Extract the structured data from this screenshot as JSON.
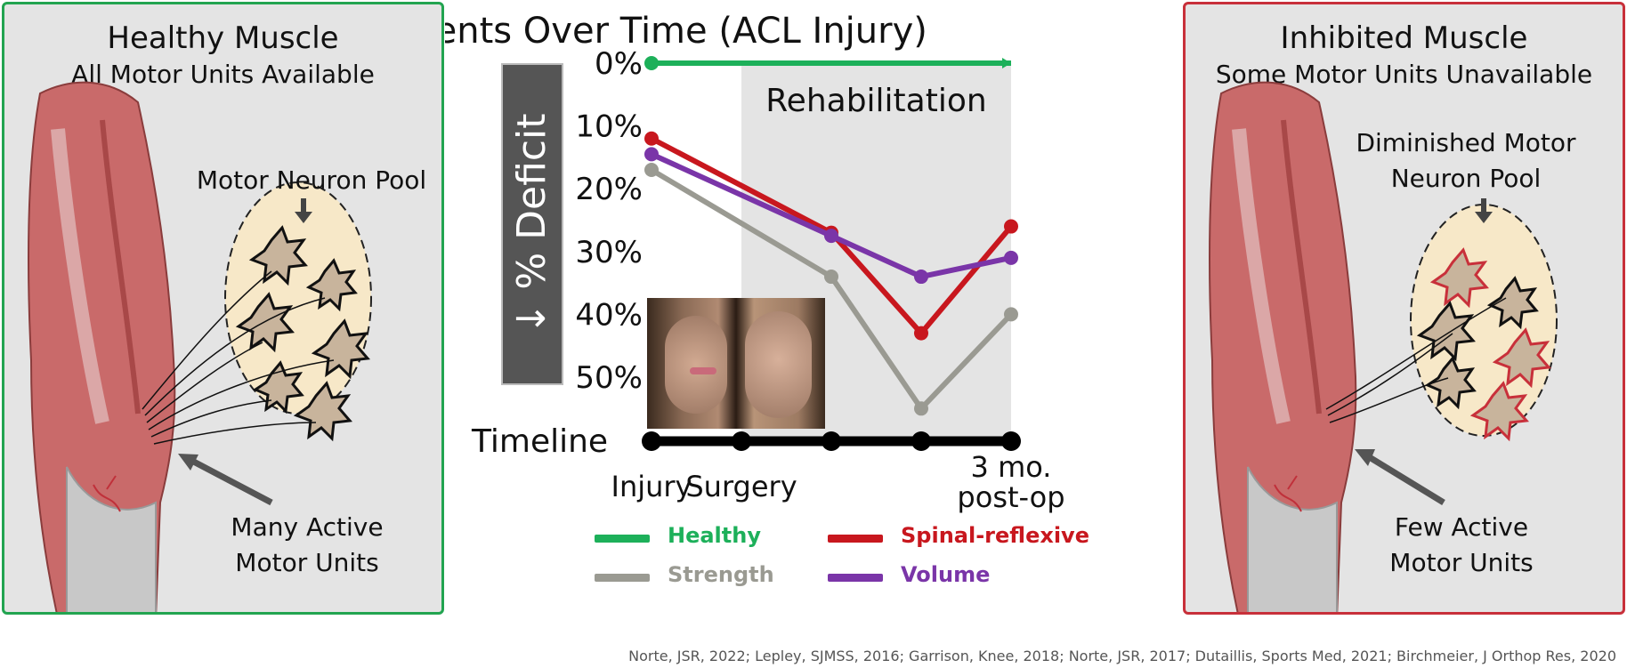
{
  "left_panel": {
    "title": "Healthy Muscle",
    "subtitle": "All Motor Units Available",
    "pool_label": "Motor Neuron Pool",
    "units_label_line1": "Many Active",
    "units_label_line2": "Motor Units",
    "border_color": "#22a450"
  },
  "right_panel": {
    "title": "Inhibited Muscle",
    "subtitle": "Some Motor Units Unavailable",
    "pool_label_line1": "Diminished Motor",
    "pool_label_line2": "Neuron Pool",
    "units_label_line1": "Few Active",
    "units_label_line2": "Motor Units",
    "border_color": "#c8303a"
  },
  "chart_data": {
    "type": "line",
    "title": "Impairments Over Time (ACL Injury)",
    "ylabel": "↓ % Deficit",
    "y_ticks": [
      "0%",
      "10%",
      "20%",
      "30%",
      "40%",
      "50%"
    ],
    "ylim": [
      0,
      50
    ],
    "y_inverted": true,
    "x_axis_label": "Timeline",
    "x_points": [
      "Injury",
      "Surgery",
      "",
      "",
      "3 mo. post-op"
    ],
    "shaded_region_label": "Rehabilitation",
    "shaded_region_from": "Surgery",
    "shaded_region_to": "3 mo. post-op",
    "series": [
      {
        "name": "Healthy",
        "color": "#1db05a",
        "points": [
          [
            0,
            0
          ],
          [
            4,
            0
          ]
        ]
      },
      {
        "name": "Spinal-reflexive",
        "color": "#c8171e",
        "points": [
          [
            0,
            12
          ],
          [
            2,
            27
          ],
          [
            3,
            43
          ],
          [
            4,
            26
          ]
        ]
      },
      {
        "name": "Strength",
        "color": "#9a9a92",
        "points": [
          [
            0,
            17
          ],
          [
            2,
            34
          ],
          [
            3,
            55
          ],
          [
            4,
            40
          ]
        ]
      },
      {
        "name": "Volume",
        "color": "#7a35a8",
        "points": [
          [
            0,
            14.5
          ],
          [
            2,
            27.5
          ],
          [
            3,
            34
          ],
          [
            4,
            31
          ]
        ]
      }
    ],
    "legend_position": "bottom"
  },
  "references": "Norte, JSR, 2022; Lepley, SJMSS, 2016; Garrison, Knee, 2018; Norte, JSR, 2017; Dutaillis, Sports Med, 2021; Birchmeier, J Orthop Res, 2020"
}
